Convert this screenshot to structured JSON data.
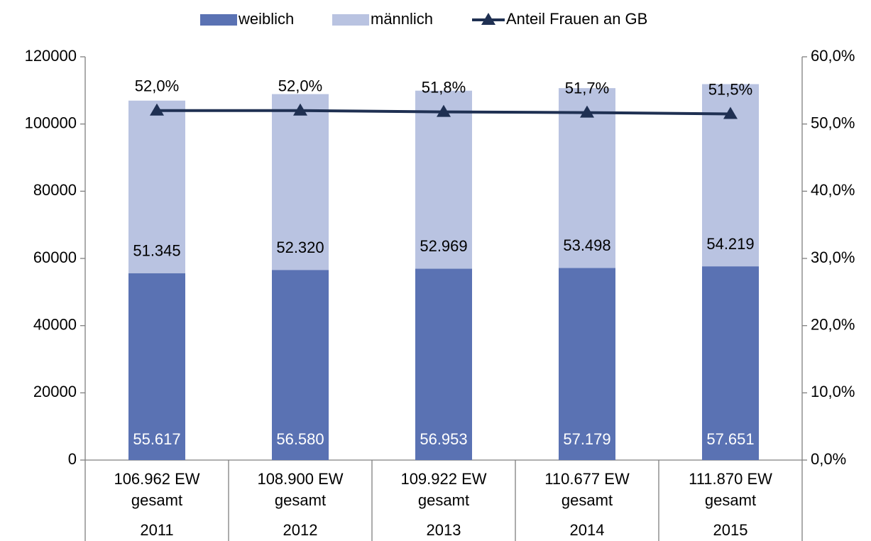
{
  "chart_data": {
    "type": "bar",
    "stacked": true,
    "legend": "top",
    "categories": [
      "106.962 EW\ngesamt",
      "108.900 EW\ngesamt",
      "109.922 EW\ngesamt",
      "110.677 EW\ngesamt",
      "111.870 EW\ngesamt"
    ],
    "category_groups": [
      "2011",
      "2012",
      "2013",
      "2014",
      "2015"
    ],
    "series": [
      {
        "name": "weiblich",
        "color": "#5a72b3",
        "values": [
          55617,
          56580,
          56953,
          57179,
          57651
        ],
        "value_labels": [
          "55.617",
          "56.580",
          "56.953",
          "57.179",
          "57.651"
        ]
      },
      {
        "name": "männlich",
        "color": "#b9c3e1",
        "values": [
          51345,
          52320,
          52969,
          53498,
          54219
        ],
        "value_labels": [
          "51.345",
          "52.320",
          "52.969",
          "53.498",
          "54.219"
        ]
      },
      {
        "name": "Anteil Frauen an GB",
        "type": "line",
        "axis": "y2",
        "color": "#1f3052",
        "values": [
          52.0,
          52.0,
          51.8,
          51.7,
          51.5
        ],
        "value_labels": [
          "52,0%",
          "52,0%",
          "51,8%",
          "51,7%",
          "51,5%"
        ]
      }
    ],
    "ylim": [
      0,
      120000
    ],
    "yticks": [
      0,
      20000,
      40000,
      60000,
      80000,
      100000,
      120000
    ],
    "y2lim": [
      0,
      60
    ],
    "y2ticks": [
      {
        "value": 0,
        "label": "0,0%"
      },
      {
        "value": 10,
        "label": "10,0%"
      },
      {
        "value": 20,
        "label": "20,0%"
      },
      {
        "value": 30,
        "label": "30,0%"
      },
      {
        "value": 40,
        "label": "40,0%"
      },
      {
        "value": 50,
        "label": "50,0%"
      },
      {
        "value": 60,
        "label": "60,0%"
      }
    ],
    "grid": false
  }
}
